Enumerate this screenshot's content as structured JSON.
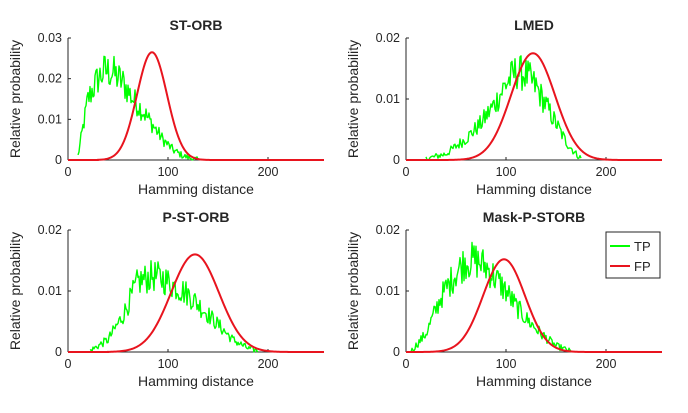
{
  "colors": {
    "tp": "#00ff00",
    "fp": "#e8141e",
    "axis": "#262626"
  },
  "legend": {
    "entries": [
      "TP",
      "FP"
    ],
    "placement": "inside-top-right of Mask-P-STORB panel"
  },
  "chart_data": [
    {
      "type": "line",
      "title": "ST-ORB",
      "xlabel": "Hamming distance",
      "ylabel": "Relative probability",
      "xlim": [
        0,
        256
      ],
      "ylim": [
        0,
        0.03
      ],
      "xticks": [
        0,
        100,
        200
      ],
      "xtick_labels": [
        "0",
        "100",
        "200"
      ],
      "yticks": [
        0,
        0.01,
        0.02,
        0.03
      ],
      "ytick_labels": [
        "0",
        "0.01",
        "0.02",
        "0.03"
      ],
      "grid": false,
      "series": [
        {
          "name": "TP",
          "color": "#00ff00",
          "kind": "noisy",
          "x_start": 10,
          "x_end": 130,
          "x": [
            10,
            20,
            30,
            37,
            45,
            55,
            65,
            75,
            85,
            95,
            105,
            115,
            125,
            130
          ],
          "y": [
            0.001,
            0.015,
            0.02,
            0.022,
            0.0215,
            0.019,
            0.015,
            0.012,
            0.0085,
            0.005,
            0.0025,
            0.001,
            0.0003,
            0.0001
          ]
        },
        {
          "name": "FP",
          "color": "#e8141e",
          "kind": "gaussian",
          "x_start": 30,
          "x_end": 150,
          "mean": 84,
          "peak": 0.0265,
          "sd": 15
        }
      ]
    },
    {
      "type": "line",
      "title": "LMED",
      "xlabel": "Hamming distance",
      "ylabel": "Relative probability",
      "xlim": [
        0,
        256
      ],
      "ylim": [
        0,
        0.02
      ],
      "xticks": [
        0,
        100,
        200
      ],
      "xtick_labels": [
        "0",
        "100",
        "200"
      ],
      "yticks": [
        0,
        0.01,
        0.02
      ],
      "ytick_labels": [
        "0",
        "0.01",
        "0.02"
      ],
      "grid": false,
      "series": [
        {
          "name": "TP",
          "color": "#00ff00",
          "kind": "noisy",
          "x_start": 20,
          "x_end": 175,
          "x": [
            20,
            40,
            60,
            75,
            90,
            100,
            110,
            120,
            130,
            140,
            150,
            160,
            170,
            175
          ],
          "y": [
            0.0002,
            0.001,
            0.0035,
            0.006,
            0.0095,
            0.0125,
            0.0145,
            0.014,
            0.012,
            0.009,
            0.006,
            0.003,
            0.001,
            0.0003
          ]
        },
        {
          "name": "FP",
          "color": "#e8141e",
          "kind": "gaussian",
          "x_start": 40,
          "x_end": 220,
          "mean": 127,
          "peak": 0.0175,
          "sd": 22
        }
      ]
    },
    {
      "type": "line",
      "title": "P-ST-ORB",
      "xlabel": "Hamming distance",
      "ylabel": "Relative probability",
      "xlim": [
        0,
        256
      ],
      "ylim": [
        0,
        0.02
      ],
      "xticks": [
        0,
        100,
        200
      ],
      "xtick_labels": [
        "0",
        "100",
        "200"
      ],
      "yticks": [
        0,
        0.01,
        0.02
      ],
      "ytick_labels": [
        "0",
        "0.01",
        "0.02"
      ],
      "grid": false,
      "series": [
        {
          "name": "TP",
          "color": "#00ff00",
          "kind": "noisy",
          "x_start": 22,
          "x_end": 190,
          "x": [
            22,
            40,
            55,
            70,
            85,
            95,
            105,
            120,
            135,
            150,
            165,
            180,
            190
          ],
          "y": [
            0.0002,
            0.002,
            0.006,
            0.0115,
            0.0125,
            0.012,
            0.011,
            0.0095,
            0.007,
            0.0045,
            0.002,
            0.0006,
            0.0002
          ]
        },
        {
          "name": "FP",
          "color": "#e8141e",
          "kind": "gaussian",
          "x_start": 40,
          "x_end": 220,
          "mean": 127,
          "peak": 0.016,
          "sd": 24
        }
      ]
    },
    {
      "type": "line",
      "title": "Mask-P-STORB",
      "xlabel": "Hamming distance",
      "ylabel": "Relative probability",
      "xlim": [
        0,
        256
      ],
      "ylim": [
        0,
        0.02
      ],
      "xticks": [
        0,
        100,
        200
      ],
      "xtick_labels": [
        "0",
        "100",
        "200"
      ],
      "yticks": [
        0,
        0.01,
        0.02
      ],
      "ytick_labels": [
        "0",
        "0.01",
        "0.02"
      ],
      "grid": false,
      "series": [
        {
          "name": "TP",
          "color": "#00ff00",
          "kind": "noisy",
          "x_start": 5,
          "x_end": 165,
          "x": [
            5,
            20,
            35,
            50,
            60,
            70,
            80,
            90,
            100,
            110,
            120,
            135,
            150,
            165
          ],
          "y": [
            0.0001,
            0.003,
            0.009,
            0.013,
            0.015,
            0.015,
            0.014,
            0.012,
            0.01,
            0.0075,
            0.0055,
            0.003,
            0.001,
            0.0001
          ]
        },
        {
          "name": "FP",
          "color": "#e8141e",
          "kind": "gaussian",
          "x_start": 10,
          "x_end": 190,
          "mean": 98,
          "peak": 0.0152,
          "sd": 21
        }
      ]
    }
  ]
}
